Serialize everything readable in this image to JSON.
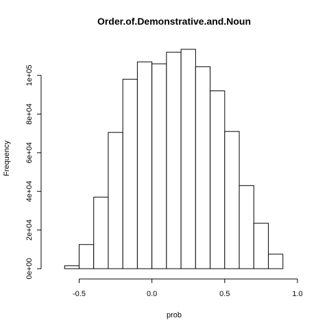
{
  "chart_data": {
    "type": "histogram",
    "title": "Order.of.Demonstrative.and.Noun",
    "xlabel": "prob",
    "ylabel": "Frequency",
    "xlim": [
      -0.7,
      1.0
    ],
    "ylim": [
      0,
      115000
    ],
    "bins": [
      {
        "x0": -0.6,
        "x1": -0.5,
        "count": 1500
      },
      {
        "x0": -0.5,
        "x1": -0.4,
        "count": 12500
      },
      {
        "x0": -0.4,
        "x1": -0.3,
        "count": 37000
      },
      {
        "x0": -0.3,
        "x1": -0.2,
        "count": 70500
      },
      {
        "x0": -0.2,
        "x1": -0.1,
        "count": 98000
      },
      {
        "x0": -0.1,
        "x1": 0.0,
        "count": 107000
      },
      {
        "x0": 0.0,
        "x1": 0.1,
        "count": 106000
      },
      {
        "x0": 0.1,
        "x1": 0.2,
        "count": 112000
      },
      {
        "x0": 0.2,
        "x1": 0.3,
        "count": 113500
      },
      {
        "x0": 0.3,
        "x1": 0.4,
        "count": 104500
      },
      {
        "x0": 0.4,
        "x1": 0.5,
        "count": 92000
      },
      {
        "x0": 0.5,
        "x1": 0.6,
        "count": 71000
      },
      {
        "x0": 0.6,
        "x1": 0.7,
        "count": 43000
      },
      {
        "x0": 0.7,
        "x1": 0.8,
        "count": 23500
      },
      {
        "x0": 0.8,
        "x1": 0.9,
        "count": 7500
      }
    ],
    "x_ticks": [
      -0.5,
      0.0,
      0.5,
      1.0
    ],
    "x_tick_labels": [
      "-0.5",
      "0.0",
      "0.5",
      "1.0"
    ],
    "y_ticks": [
      0,
      20000,
      40000,
      60000,
      80000,
      100000
    ],
    "y_tick_labels": [
      "0e+00",
      "2e+04",
      "4e+04",
      "6e+04",
      "8e+04",
      "1e+05"
    ],
    "grid": false,
    "legend": "none"
  }
}
